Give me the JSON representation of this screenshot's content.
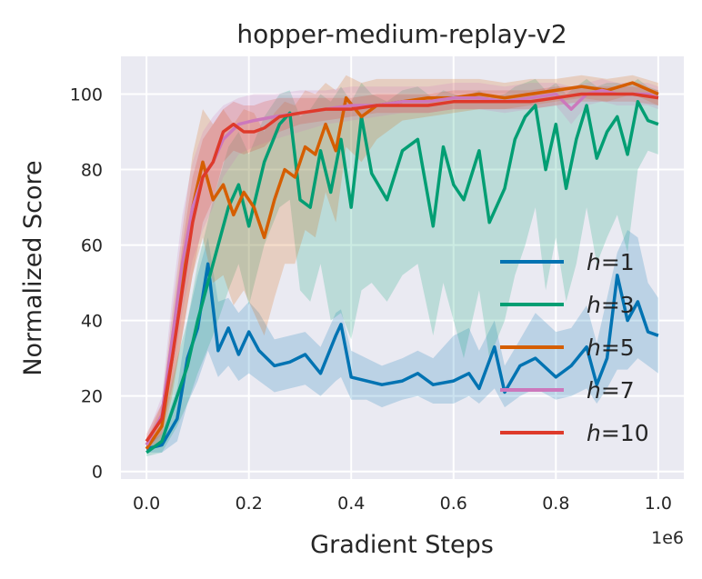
{
  "chart_data": {
    "type": "line",
    "title": "hopper-medium-replay-v2",
    "xlabel": "Gradient Steps",
    "ylabel": "Normalized Score",
    "x_offset_label": "1e6",
    "xlim": [
      -0.05,
      1.05
    ],
    "ylim": [
      -2,
      110
    ],
    "xticks": [
      0.0,
      0.2,
      0.4,
      0.6,
      0.8,
      1.0
    ],
    "xtick_labels": [
      "0.0",
      "0.2",
      "0.4",
      "0.6",
      "0.8",
      "1.0"
    ],
    "yticks": [
      0,
      20,
      40,
      60,
      80,
      100
    ],
    "ytick_labels": [
      "0",
      "20",
      "40",
      "60",
      "80",
      "100"
    ],
    "grid": true,
    "legend_position": "lower-right",
    "series": [
      {
        "name": "h=1",
        "legend_prefix": "h",
        "legend_suffix": "=1",
        "color": "#0173b2",
        "x": [
          0.0,
          0.03,
          0.06,
          0.08,
          0.1,
          0.12,
          0.14,
          0.16,
          0.18,
          0.2,
          0.22,
          0.25,
          0.28,
          0.31,
          0.34,
          0.37,
          0.38,
          0.4,
          0.43,
          0.46,
          0.5,
          0.53,
          0.56,
          0.6,
          0.63,
          0.65,
          0.68,
          0.7,
          0.73,
          0.76,
          0.8,
          0.83,
          0.86,
          0.88,
          0.9,
          0.92,
          0.94,
          0.96,
          0.98,
          1.0
        ],
        "y": [
          6,
          7,
          14,
          30,
          38,
          55,
          32,
          38,
          31,
          37,
          32,
          28,
          29,
          31,
          26,
          36,
          39,
          25,
          24,
          23,
          24,
          26,
          23,
          24,
          26,
          22,
          33,
          21,
          28,
          30,
          25,
          28,
          33,
          23,
          30,
          52,
          40,
          45,
          37,
          36
        ],
        "lower": [
          5,
          5,
          8,
          18,
          24,
          32,
          25,
          28,
          24,
          26,
          24,
          21,
          22,
          23,
          20,
          24,
          25,
          19,
          19,
          17,
          19,
          20,
          18,
          18,
          20,
          18,
          22,
          17,
          20,
          22,
          19,
          20,
          22,
          18,
          22,
          27,
          27,
          30,
          28,
          26
        ],
        "upper": [
          7,
          10,
          22,
          40,
          52,
          62,
          45,
          46,
          42,
          45,
          42,
          35,
          36,
          37,
          33,
          42,
          43,
          32,
          30,
          28,
          30,
          32,
          30,
          36,
          38,
          32,
          40,
          28,
          35,
          42,
          37,
          38,
          44,
          34,
          46,
          58,
          64,
          62,
          50,
          46
        ]
      },
      {
        "name": "h=3",
        "legend_prefix": "h",
        "legend_suffix": "=3",
        "color": "#029e73",
        "x": [
          0.0,
          0.03,
          0.06,
          0.08,
          0.1,
          0.13,
          0.16,
          0.18,
          0.2,
          0.23,
          0.26,
          0.28,
          0.3,
          0.32,
          0.34,
          0.36,
          0.38,
          0.4,
          0.42,
          0.44,
          0.47,
          0.5,
          0.53,
          0.56,
          0.58,
          0.6,
          0.62,
          0.65,
          0.67,
          0.7,
          0.72,
          0.74,
          0.76,
          0.78,
          0.8,
          0.82,
          0.84,
          0.86,
          0.88,
          0.9,
          0.92,
          0.94,
          0.96,
          0.98,
          1.0
        ],
        "y": [
          5,
          8,
          20,
          28,
          40,
          55,
          70,
          76,
          65,
          82,
          92,
          95,
          72,
          70,
          85,
          74,
          88,
          70,
          94,
          79,
          72,
          85,
          88,
          65,
          86,
          76,
          72,
          85,
          66,
          75,
          88,
          94,
          97,
          80,
          92,
          75,
          88,
          97,
          83,
          90,
          94,
          84,
          98,
          93,
          92
        ],
        "lower": [
          4,
          5,
          12,
          18,
          26,
          36,
          48,
          55,
          44,
          60,
          70,
          72,
          48,
          45,
          55,
          40,
          42,
          35,
          48,
          50,
          45,
          52,
          55,
          36,
          50,
          40,
          30,
          48,
          30,
          40,
          52,
          60,
          70,
          48,
          62,
          45,
          55,
          70,
          55,
          62,
          68,
          58,
          80,
          85,
          84
        ],
        "upper": [
          7,
          12,
          30,
          40,
          55,
          72,
          86,
          90,
          84,
          94,
          100,
          101,
          94,
          96,
          100,
          98,
          102,
          98,
          103,
          100,
          98,
          101,
          102,
          99,
          101,
          100,
          99,
          101,
          99,
          100,
          102,
          103,
          104,
          101,
          103,
          100,
          102,
          104,
          102,
          103,
          103,
          102,
          104,
          102,
          101
        ]
      },
      {
        "name": "h=5",
        "legend_prefix": "h",
        "legend_suffix": "=5",
        "color": "#d55e00",
        "x": [
          0.0,
          0.03,
          0.05,
          0.07,
          0.09,
          0.11,
          0.13,
          0.15,
          0.17,
          0.19,
          0.21,
          0.23,
          0.25,
          0.27,
          0.29,
          0.31,
          0.33,
          0.35,
          0.37,
          0.39,
          0.42,
          0.45,
          0.5,
          0.55,
          0.6,
          0.65,
          0.7,
          0.75,
          0.8,
          0.85,
          0.9,
          0.95,
          1.0
        ],
        "y": [
          6,
          12,
          30,
          50,
          70,
          82,
          72,
          76,
          68,
          74,
          70,
          62,
          72,
          80,
          78,
          86,
          84,
          92,
          85,
          99,
          94,
          97,
          98,
          99,
          99,
          100,
          99,
          100,
          101,
          102,
          101,
          103,
          100
        ],
        "lower": [
          5,
          8,
          20,
          36,
          52,
          62,
          50,
          52,
          44,
          48,
          42,
          36,
          46,
          55,
          55,
          64,
          62,
          74,
          66,
          86,
          82,
          88,
          93,
          94,
          95,
          96,
          96,
          97,
          98,
          99,
          98,
          100,
          97
        ],
        "upper": [
          8,
          18,
          42,
          64,
          84,
          96,
          92,
          96,
          92,
          96,
          95,
          90,
          95,
          98,
          97,
          101,
          100,
          103,
          101,
          105,
          103,
          104,
          104,
          104,
          104,
          104,
          103,
          104,
          104,
          105,
          104,
          105,
          103
        ]
      },
      {
        "name": "h=7",
        "legend_prefix": "h",
        "legend_suffix": "=7",
        "color": "#cc78bc",
        "x": [
          0.0,
          0.03,
          0.05,
          0.07,
          0.09,
          0.11,
          0.13,
          0.15,
          0.18,
          0.21,
          0.25,
          0.3,
          0.35,
          0.4,
          0.45,
          0.5,
          0.55,
          0.6,
          0.65,
          0.7,
          0.75,
          0.8,
          0.83,
          0.86,
          0.89,
          0.92,
          0.95,
          0.98,
          1.0
        ],
        "y": [
          7,
          15,
          35,
          55,
          70,
          78,
          82,
          88,
          92,
          93,
          94,
          95,
          96,
          97,
          97,
          98,
          98,
          99,
          99,
          98,
          99,
          100,
          96,
          100,
          101,
          100,
          100,
          100,
          99
        ],
        "lower": [
          5,
          10,
          24,
          42,
          56,
          64,
          70,
          78,
          84,
          86,
          88,
          90,
          92,
          93,
          94,
          95,
          95,
          96,
          96,
          95,
          96,
          97,
          92,
          97,
          98,
          97,
          97,
          97,
          96
        ],
        "upper": [
          9,
          20,
          46,
          68,
          82,
          90,
          94,
          97,
          99,
          100,
          100,
          101,
          101,
          102,
          102,
          102,
          102,
          103,
          103,
          102,
          103,
          103,
          102,
          103,
          104,
          103,
          103,
          103,
          102
        ]
      },
      {
        "name": "h=10",
        "legend_prefix": "h",
        "legend_suffix": "=10",
        "color": "#de3a2b",
        "x": [
          0.0,
          0.03,
          0.05,
          0.07,
          0.09,
          0.11,
          0.13,
          0.15,
          0.17,
          0.19,
          0.21,
          0.23,
          0.26,
          0.3,
          0.35,
          0.4,
          0.45,
          0.5,
          0.55,
          0.6,
          0.65,
          0.7,
          0.75,
          0.8,
          0.85,
          0.9,
          0.95,
          1.0
        ],
        "y": [
          8,
          14,
          30,
          48,
          66,
          78,
          82,
          90,
          92,
          90,
          90,
          91,
          94,
          95,
          96,
          96,
          97,
          97,
          97,
          98,
          98,
          98,
          98,
          99,
          100,
          100,
          100,
          99
        ],
        "lower": [
          6,
          10,
          22,
          36,
          52,
          66,
          72,
          82,
          85,
          84,
          85,
          86,
          90,
          92,
          93,
          94,
          95,
          95,
          95,
          96,
          96,
          96,
          96,
          97,
          98,
          98,
          98,
          97
        ],
        "upper": [
          10,
          18,
          38,
          60,
          78,
          88,
          92,
          96,
          98,
          97,
          97,
          98,
          99,
          99,
          99,
          99,
          100,
          100,
          100,
          101,
          101,
          101,
          101,
          102,
          102,
          102,
          102,
          101
        ]
      }
    ]
  }
}
